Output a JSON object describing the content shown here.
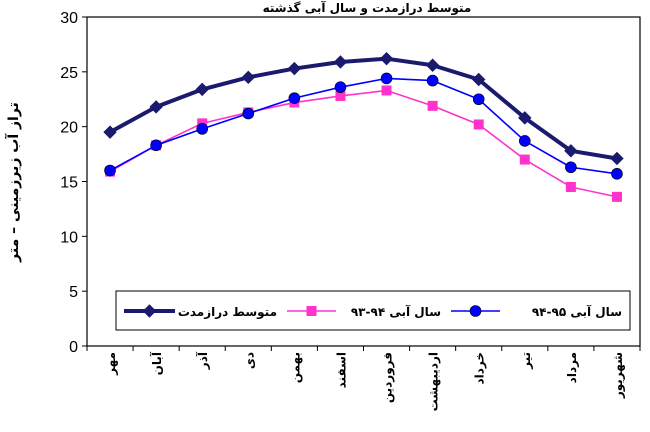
{
  "chart_data": {
    "type": "line",
    "title": "متوسط درازمدت و سال آبی گذشته",
    "xlabel": "",
    "ylabel": "تراز آب زیرزمینی – متر",
    "ylim": [
      0,
      30
    ],
    "yticks": [
      0,
      5,
      10,
      15,
      20,
      25,
      30
    ],
    "grid": false,
    "legend_position": "bottom",
    "categories": [
      "مهر",
      "آبان",
      "آذر",
      "دی",
      "بهمن",
      "اسفند",
      "فروردین",
      "اردیبهشت",
      "خرداد",
      "تیر",
      "مرداد",
      "شهریور"
    ],
    "series": [
      {
        "name": "متوسط درازمدت",
        "color": "#1a1a6e",
        "marker": "diamond",
        "values": [
          19.5,
          21.8,
          23.4,
          24.5,
          25.3,
          25.9,
          26.2,
          25.6,
          24.3,
          20.8,
          17.8,
          17.1
        ]
      },
      {
        "name": "سال آبی ۹۴-۹۳",
        "color": "#ff33cc",
        "marker": "square",
        "values": [
          15.9,
          18.3,
          20.3,
          21.3,
          22.2,
          22.8,
          23.3,
          21.9,
          20.2,
          17.0,
          14.5,
          13.6
        ]
      },
      {
        "name": "سال آبی ۹۵-۹۴",
        "color": "#0000ff",
        "marker": "circle",
        "values": [
          16.0,
          18.3,
          19.8,
          21.2,
          22.6,
          23.6,
          24.4,
          24.2,
          22.5,
          18.7,
          16.3,
          15.7
        ]
      }
    ]
  }
}
